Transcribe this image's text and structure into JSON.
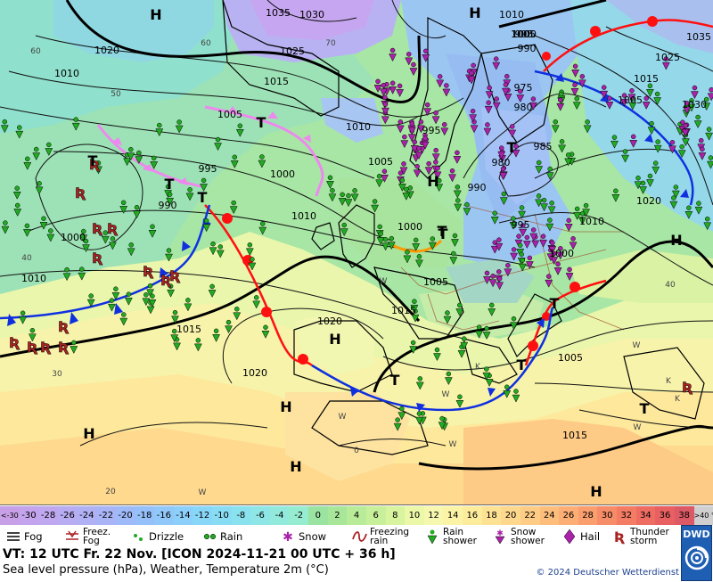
{
  "map": {
    "pressure_labels": [
      {
        "text": "1035"
      },
      {
        "text": "1030"
      },
      {
        "text": "1025"
      },
      {
        "text": "1020"
      },
      {
        "text": "1010"
      },
      {
        "text": "1015"
      },
      {
        "text": "1005"
      },
      {
        "text": "1010"
      },
      {
        "text": "995"
      },
      {
        "text": "1005"
      },
      {
        "text": "1000"
      },
      {
        "text": "990"
      },
      {
        "text": "995"
      },
      {
        "text": "1000"
      },
      {
        "text": "1010"
      },
      {
        "text": "1010"
      },
      {
        "text": "1000"
      },
      {
        "text": "990"
      },
      {
        "text": "995"
      },
      {
        "text": "1005"
      },
      {
        "text": "1015"
      },
      {
        "text": "1020"
      },
      {
        "text": "1015"
      },
      {
        "text": "1020"
      },
      {
        "text": "1005"
      },
      {
        "text": "1010"
      },
      {
        "text": "1000"
      },
      {
        "text": "990"
      },
      {
        "text": "975"
      },
      {
        "text": "980"
      },
      {
        "text": "985"
      },
      {
        "text": "980"
      },
      {
        "text": "1025"
      },
      {
        "text": "1035"
      },
      {
        "text": "1030"
      },
      {
        "text": "1015"
      },
      {
        "text": "1005"
      },
      {
        "text": "1010"
      },
      {
        "text": "1020"
      },
      {
        "text": "1000"
      },
      {
        "text": "1005"
      },
      {
        "text": "1015"
      },
      {
        "text": "995"
      }
    ],
    "centers": [
      {
        "type": "H"
      },
      {
        "type": "H"
      },
      {
        "type": "T"
      },
      {
        "type": "T"
      },
      {
        "type": "T"
      },
      {
        "type": "T"
      },
      {
        "type": "H"
      },
      {
        "type": "T"
      },
      {
        "type": "T"
      },
      {
        "type": "H"
      },
      {
        "type": "H"
      },
      {
        "type": "H"
      },
      {
        "type": "H"
      },
      {
        "type": "H"
      },
      {
        "type": "T"
      },
      {
        "type": "T"
      },
      {
        "type": "H"
      },
      {
        "type": "T"
      },
      {
        "type": "T"
      },
      {
        "type": "T"
      }
    ],
    "temp_labels": [
      {
        "text": "60"
      },
      {
        "text": "50"
      },
      {
        "text": "40"
      },
      {
        "text": "30"
      },
      {
        "text": "20"
      },
      {
        "text": "60"
      },
      {
        "text": "70"
      },
      {
        "text": "40"
      },
      {
        "text": "0"
      },
      {
        "text": "W"
      },
      {
        "text": "W"
      },
      {
        "text": "K"
      },
      {
        "text": "W"
      },
      {
        "text": "W"
      },
      {
        "text": "K"
      },
      {
        "text": "K"
      },
      {
        "text": "W"
      },
      {
        "text": "W"
      },
      {
        "text": "W"
      }
    ]
  },
  "scale": [
    {
      "label": "<-30",
      "color": "#c8a0e8"
    },
    {
      "label": "-30",
      "color": "#c4a4ec"
    },
    {
      "label": "-28",
      "color": "#c0a8f0"
    },
    {
      "label": "-26",
      "color": "#b8acf2"
    },
    {
      "label": "-24",
      "color": "#b0b0f4"
    },
    {
      "label": "-22",
      "color": "#a8b4f6"
    },
    {
      "label": "-20",
      "color": "#9ebaf8"
    },
    {
      "label": "-18",
      "color": "#96c0fa"
    },
    {
      "label": "-16",
      "color": "#90c8fa"
    },
    {
      "label": "-14",
      "color": "#8ccffa"
    },
    {
      "label": "-12",
      "color": "#88d6f8"
    },
    {
      "label": "-10",
      "color": "#88ddf4"
    },
    {
      "label": "-8",
      "color": "#8ae2ee"
    },
    {
      "label": "-6",
      "color": "#8ee6e6"
    },
    {
      "label": "-4",
      "color": "#92eadc"
    },
    {
      "label": "-2",
      "color": "#96ecd0"
    },
    {
      "label": "0",
      "color": "#9be3a0"
    },
    {
      "label": "2",
      "color": "#a8e79a"
    },
    {
      "label": "4",
      "color": "#b8ec98"
    },
    {
      "label": "6",
      "color": "#c8f09a"
    },
    {
      "label": "8",
      "color": "#d8f49e"
    },
    {
      "label": "10",
      "color": "#eaf8a8"
    },
    {
      "label": "12",
      "color": "#f6f8b0"
    },
    {
      "label": "14",
      "color": "#fbf3a6"
    },
    {
      "label": "16",
      "color": "#fdec9c"
    },
    {
      "label": "18",
      "color": "#fee294"
    },
    {
      "label": "20",
      "color": "#fed88c"
    },
    {
      "label": "22",
      "color": "#fecc84"
    },
    {
      "label": "24",
      "color": "#fdbe7c"
    },
    {
      "label": "26",
      "color": "#fcae74"
    },
    {
      "label": "28",
      "color": "#fa9e6e"
    },
    {
      "label": "30",
      "color": "#f78c68"
    },
    {
      "label": "32",
      "color": "#f47c64"
    },
    {
      "label": "34",
      "color": "#ef6c62"
    },
    {
      "label": "36",
      "color": "#e86062"
    },
    {
      "label": "38",
      "color": "#dc5a66"
    },
    {
      "label": ">40 °C",
      "color": "#cfcfcf"
    }
  ],
  "symbols": [
    {
      "label": "Fog",
      "icon": "fog-icon"
    },
    {
      "label": "Freez. Fog",
      "icon": "freezing-fog-icon"
    },
    {
      "label": "Drizzle",
      "icon": "drizzle-icon"
    },
    {
      "label": "Rain",
      "icon": "rain-icon"
    },
    {
      "label": "Snow",
      "icon": "snow-icon"
    },
    {
      "label": "Freezing rain",
      "icon": "freezing-rain-icon"
    },
    {
      "label": "Rain shower",
      "icon": "rain-shower-icon"
    },
    {
      "label": "Snow shower",
      "icon": "snow-shower-icon"
    },
    {
      "label": "Hail",
      "icon": "hail-icon"
    },
    {
      "label": "Thunder storm",
      "icon": "thunderstorm-icon"
    }
  ],
  "valid_time": "VT: 12 UTC Fr.  22 Nov. [ICON 2024-11-21  00 UTC + 36 h]",
  "description": "Sea level pressure (hPa), Weather, Temperature 2m (°C)",
  "copyright": "© 2024 Deutscher Wetterdienst",
  "logo_text": "DWD",
  "colors": {
    "cold_front": "#1030e0",
    "warm_front": "#ff1010",
    "occlusion": "#ee88ee",
    "trough": "#ff9900",
    "rain_green": "#22aa22",
    "snow_purple": "#aa22aa",
    "thunder_red": "#aa2222"
  }
}
